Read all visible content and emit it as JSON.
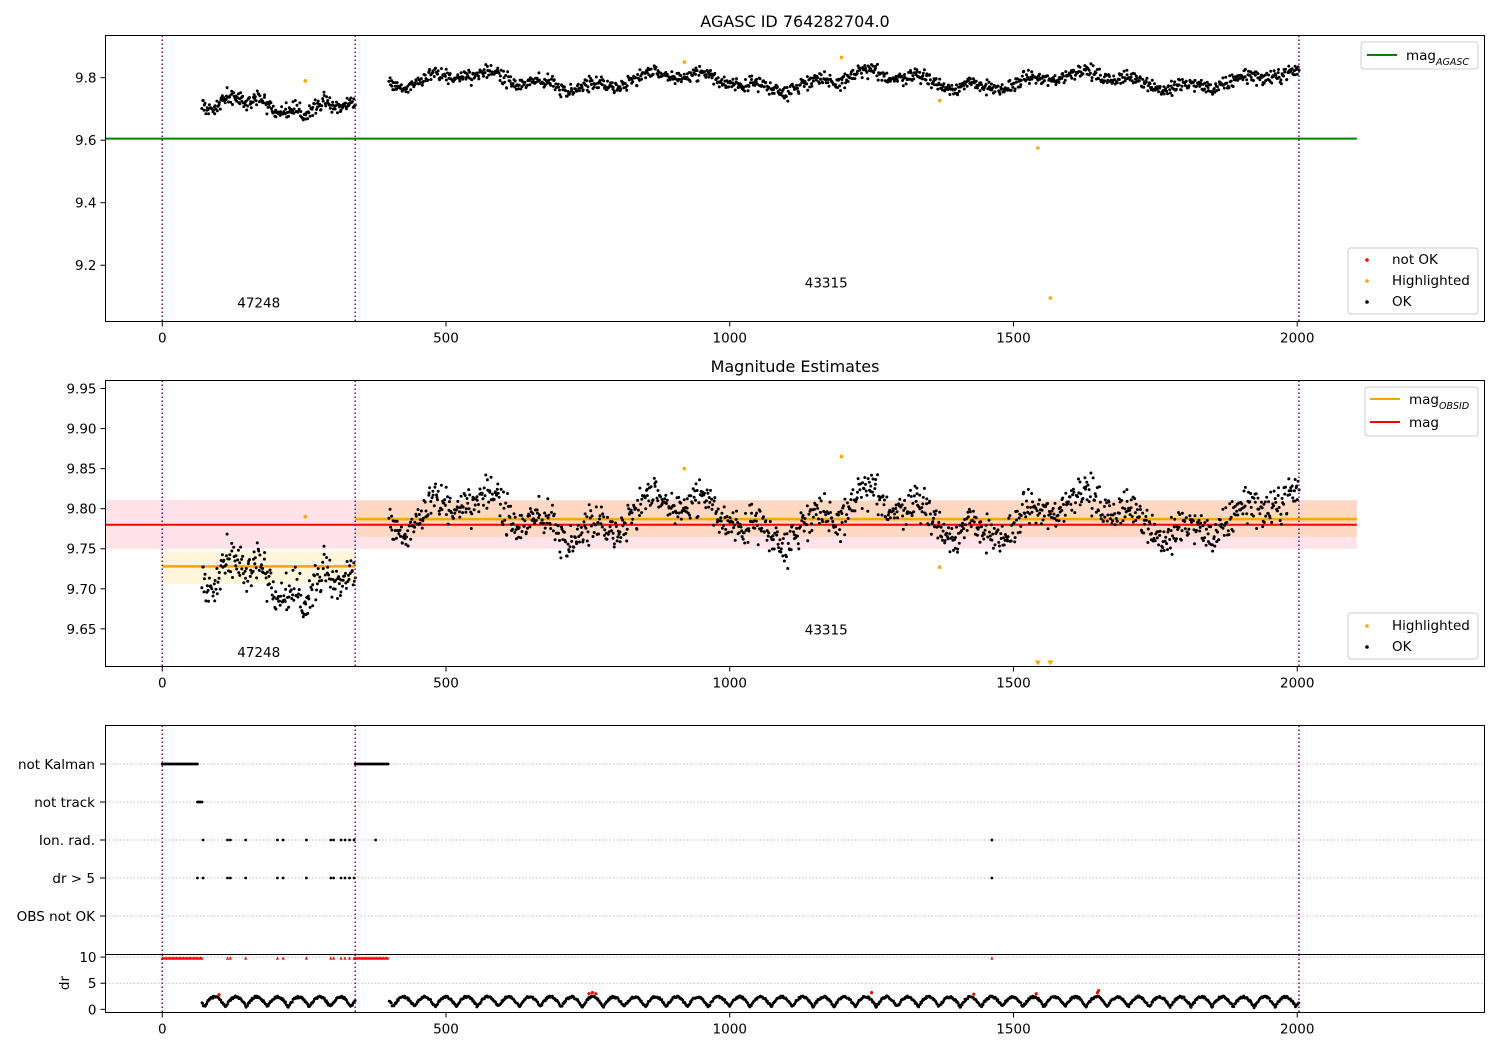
{
  "colors": {
    "ok": "#000000",
    "highlighted": "#ffa500",
    "not_ok": "#ff0000",
    "mag_agasc": "#008000",
    "mag": "#ff0000",
    "mag_obsid": "#ffa500",
    "obs_divider": "#800080",
    "band_red": "#ffc0cb",
    "band_orange": "#ffdab9"
  },
  "chart_data": [
    {
      "type": "scatter",
      "title": "AGASC ID 764282704.0",
      "xlim": [
        -100,
        2330
      ],
      "ylim": [
        9.02,
        9.935
      ],
      "xticks": [
        0,
        500,
        1000,
        1500,
        2000
      ],
      "yticks": [
        9.2,
        9.4,
        9.6,
        9.8
      ],
      "ytick_labels": [
        "9.2",
        "9.4",
        "9.6",
        "9.8"
      ],
      "obs_boundaries": [
        0,
        340,
        2003
      ],
      "obs_labels": [
        {
          "text": "47248",
          "x": 170,
          "y": 9.065
        },
        {
          "text": "43315",
          "x": 1170,
          "y": 9.128
        }
      ],
      "series": [
        {
          "name": "mag_AGASC",
          "kind": "hline",
          "y": 9.605,
          "x_range": [
            -100,
            2105
          ]
        },
        {
          "name": "OK",
          "kind": "noise",
          "segments": [
            {
              "x_start": 70,
              "x_end": 340,
              "points": 230,
              "base_start": 9.725,
              "base_end": 9.695,
              "spread": 0.012,
              "waves": [
                [
                  0.02,
                  160
                ],
                [
                  0.01,
                  55
                ]
              ]
            },
            {
              "x_start": 400,
              "x_end": 2003,
              "points": 1300,
              "base_start": 9.79,
              "base_end": 9.79,
              "spread": 0.011,
              "waves": [
                [
                  0.022,
                  360
                ],
                [
                  0.012,
                  95
                ]
              ]
            }
          ]
        },
        {
          "name": "Highlighted",
          "kind": "points",
          "x": [
            252,
            920,
            1197,
            1370,
            1543,
            1565
          ],
          "y": [
            9.79,
            9.85,
            9.865,
            9.727,
            9.575,
            9.095
          ]
        }
      ],
      "legends": [
        {
          "position": "top-right",
          "entries": [
            {
              "label": "mag",
              "sub": "AGASC",
              "type": "line",
              "color": "#008000"
            }
          ]
        },
        {
          "position": "bottom-right",
          "entries": [
            {
              "label": "not OK",
              "type": "dot",
              "color": "#ff0000"
            },
            {
              "label": "Highlighted",
              "type": "dot",
              "color": "#ffa500"
            },
            {
              "label": "OK",
              "type": "dot",
              "color": "#000000"
            }
          ]
        }
      ]
    },
    {
      "type": "scatter",
      "title": "Magnitude Estimates",
      "xlim": [
        -100,
        2330
      ],
      "ylim": [
        9.603,
        9.96
      ],
      "xticks": [
        0,
        500,
        1000,
        1500,
        2000
      ],
      "yticks": [
        9.65,
        9.7,
        9.75,
        9.8,
        9.85,
        9.9,
        9.95
      ],
      "ytick_labels": [
        "9.65",
        "9.70",
        "9.75",
        "9.80",
        "9.85",
        "9.90",
        "9.95"
      ],
      "obs_boundaries": [
        0,
        340,
        2003
      ],
      "obs_labels": [
        {
          "text": "47248",
          "x": 170,
          "y": 9.615
        },
        {
          "text": "43315",
          "x": 1170,
          "y": 9.643
        }
      ],
      "bands": [
        {
          "x_range": [
            -100,
            2105
          ],
          "y_range": [
            9.75,
            9.811
          ],
          "color": "#ffc0cb"
        },
        {
          "x_range": [
            0,
            340
          ],
          "y_range": [
            9.706,
            9.747
          ],
          "color": "#ffe8b0"
        },
        {
          "x_range": [
            340,
            2105
          ],
          "y_range": [
            9.765,
            9.81
          ],
          "color": "#ffc99a"
        }
      ],
      "series": [
        {
          "name": "mag",
          "kind": "hline",
          "y": 9.78,
          "x_range": [
            -100,
            2105
          ]
        },
        {
          "name": "mag_OBSID",
          "kind": "hsegments",
          "segments": [
            {
              "x_range": [
                0,
                340
              ],
              "y": 9.728
            },
            {
              "x_range": [
                340,
                2105
              ],
              "y": 9.787
            }
          ]
        },
        {
          "name": "OK",
          "kind": "noise",
          "segments": [
            {
              "x_start": 70,
              "x_end": 340,
              "points": 230,
              "base_start": 9.725,
              "base_end": 9.695,
              "spread": 0.012,
              "waves": [
                [
                  0.02,
                  160
                ],
                [
                  0.01,
                  55
                ]
              ]
            },
            {
              "x_start": 400,
              "x_end": 2003,
              "points": 1300,
              "base_start": 9.79,
              "base_end": 9.79,
              "spread": 0.011,
              "waves": [
                [
                  0.022,
                  360
                ],
                [
                  0.012,
                  95
                ]
              ]
            }
          ]
        },
        {
          "name": "Highlighted",
          "kind": "points",
          "x": [
            252,
            920,
            1197,
            1370
          ],
          "y": [
            9.79,
            9.85,
            9.865,
            9.727
          ]
        },
        {
          "name": "Highlighted (below range)",
          "kind": "markers",
          "x": [
            1543,
            1565
          ],
          "y": [
            9.608,
            9.608
          ]
        }
      ],
      "legends": [
        {
          "position": "top-right",
          "entries": [
            {
              "label": "mag",
              "sub": "OBSID",
              "type": "line",
              "color": "#ffa500"
            },
            {
              "label": "mag",
              "type": "line",
              "color": "#ff0000"
            }
          ]
        },
        {
          "position": "bottom-right",
          "entries": [
            {
              "label": "Highlighted",
              "type": "dot",
              "color": "#ffa500"
            },
            {
              "label": "OK",
              "type": "dot",
              "color": "#000000"
            }
          ]
        }
      ]
    },
    {
      "type": "scatter",
      "categories": [
        "not Kalman",
        "not track",
        "Ion. rad.",
        "dr > 5",
        "OBS not OK"
      ],
      "xlim": [
        -100,
        2330
      ],
      "obs_boundaries": [
        0,
        340,
        2003
      ],
      "flags": [
        {
          "flag": "not Kalman",
          "ranges": [
            [
              0,
              62
            ],
            [
              340,
              398
            ]
          ],
          "points": []
        },
        {
          "flag": "not track",
          "ranges": [
            [
              62,
              70
            ]
          ],
          "points": []
        },
        {
          "flag": "Ion. rad.",
          "ranges": [],
          "points": [
            72,
            115,
            120,
            147,
            203,
            213,
            254,
            297,
            302,
            315,
            322,
            330,
            338,
            376,
            1462
          ]
        },
        {
          "flag": "dr > 5",
          "ranges": [],
          "points": [
            62,
            72,
            115,
            120,
            147,
            203,
            213,
            254,
            297,
            302,
            315,
            322,
            330,
            338,
            1462
          ]
        },
        {
          "flag": "OBS not OK",
          "ranges": [],
          "points": []
        }
      ]
    },
    {
      "type": "scatter",
      "ylabel": "dr",
      "xlim": [
        -100,
        2330
      ],
      "ylim": [
        -0.6,
        10.5
      ],
      "xticks": [
        0,
        500,
        1000,
        1500,
        2000
      ],
      "yticks": [
        0,
        5,
        10
      ],
      "ytick_labels": [
        "0",
        "5",
        "10"
      ],
      "obs_boundaries": [
        0,
        340,
        2003
      ],
      "series": [
        {
          "name": "OK",
          "kind": "noise-dr",
          "segments": [
            {
              "x_start": 70,
              "x_end": 340,
              "points": 230
            },
            {
              "x_start": 400,
              "x_end": 2003,
              "points": 1300
            }
          ]
        },
        {
          "name": "not OK (dr > 10)",
          "kind": "capped",
          "y": 9.8,
          "ranges": [
            [
              0,
              70
            ],
            [
              340,
              398
            ]
          ],
          "x": [
            115,
            120,
            147,
            203,
            213,
            254,
            297,
            302,
            315,
            322,
            330,
            338,
            1462
          ]
        },
        {
          "name": "not OK",
          "kind": "points",
          "x": [
            100,
            752,
            758,
            764,
            1250,
            1430,
            1540,
            1648,
            1650
          ],
          "y": [
            2.8,
            3.0,
            3.2,
            3.0,
            3.2,
            2.9,
            3.0,
            3.2,
            3.6
          ]
        }
      ]
    }
  ]
}
